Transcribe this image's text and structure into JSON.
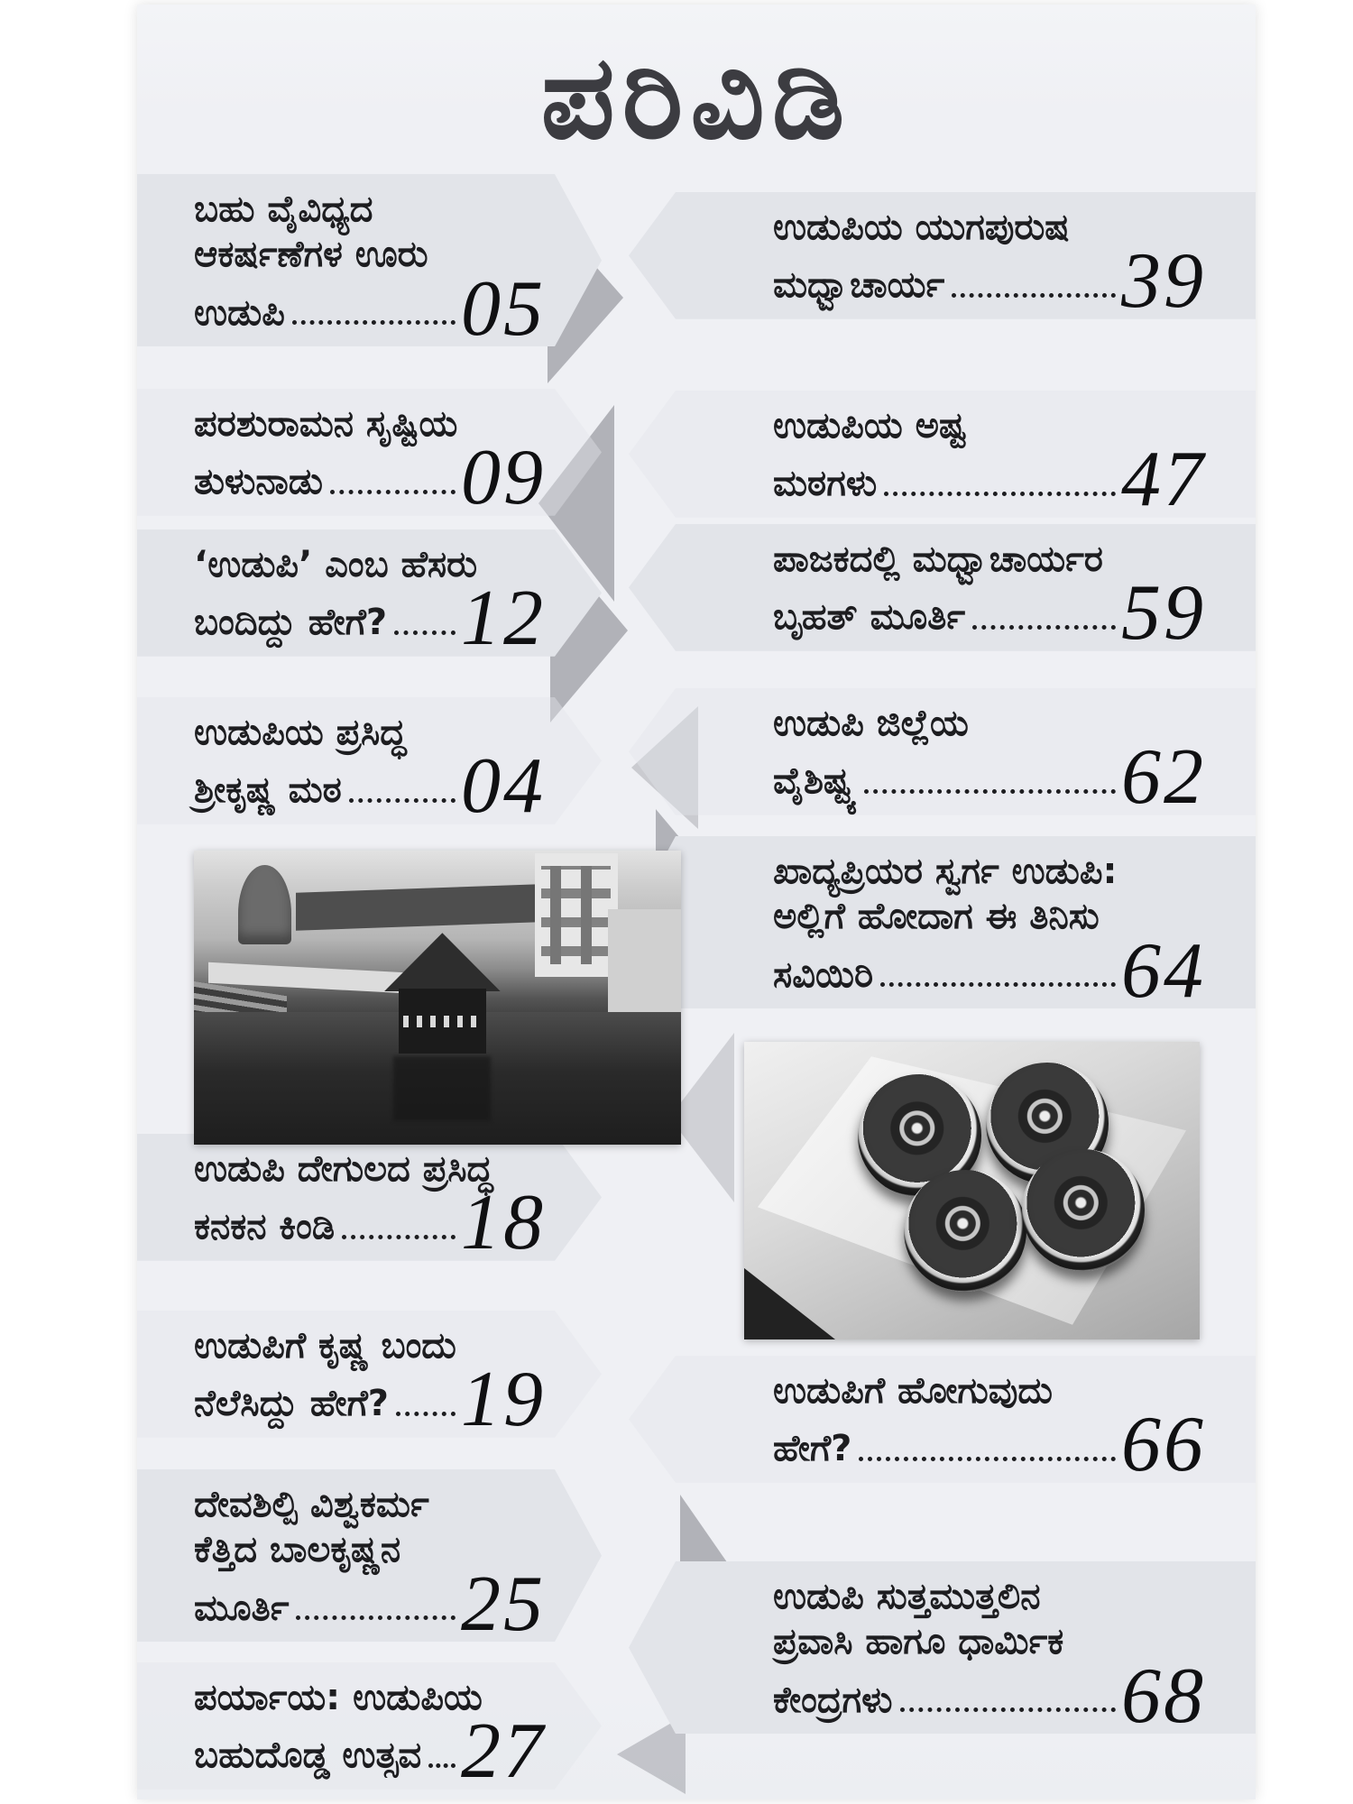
{
  "page": {
    "title": "ಪರಿವಿಡಿ",
    "colors": {
      "page_bg": "#eff0f4",
      "band": "#e2e4e9",
      "chevron": "#b1b2b8",
      "text": "#1d1d20",
      "number": "#101012",
      "title": "#3c3c41"
    }
  },
  "toc": {
    "left": [
      {
        "lines": [
          "ಬಹು ವೈವಿಧ್ಯದ",
          "ಆಕರ್ಷಣೆಗಳ ಊರು"
        ],
        "last": "ಉಡುಪಿ",
        "page": "05"
      },
      {
        "lines": [
          "ಪರಶುರಾಮನ ಸೃಷ್ಟಿಯ"
        ],
        "last": "ತುಳುನಾಡು",
        "page": "09"
      },
      {
        "lines": [
          "‘ಉಡುಪಿ’ ಎಂಬ ಹೆಸರು"
        ],
        "last": "ಬಂದಿದ್ದು ಹೇಗೆ?",
        "page": "12"
      },
      {
        "lines": [
          "ಉಡುಪಿಯ ಪ್ರಸಿದ್ಧ"
        ],
        "last": "ಶ್ರೀಕೃಷ್ಣ ಮಠ",
        "page": "04"
      },
      {
        "lines": [
          "ಉಡುಪಿ ದೇಗುಲದ ಪ್ರಸಿದ್ಧ"
        ],
        "last": "ಕನಕನ ಕಿಂಡಿ",
        "page": "18"
      },
      {
        "lines": [
          "ಉಡುಪಿಗೆ ಕೃಷ್ಣ ಬಂದು"
        ],
        "last": "ನೆಲೆಸಿದ್ದು ಹೇಗೆ?",
        "page": "19"
      },
      {
        "lines": [
          "ದೇವಶಿಲ್ಪಿ ವಿಶ್ವಕರ್ಮ",
          "ಕೆತ್ತಿದ ಬಾಲಕೃಷ್ಣನ"
        ],
        "last": "ಮೂರ್ತಿ",
        "page": "25"
      },
      {
        "lines": [
          "ಪರ್ಯಾಯ: ಉಡುಪಿಯ"
        ],
        "last": "ಬಹುದೊಡ್ಡ ಉತ್ಸವ",
        "page": "27"
      }
    ],
    "right": [
      {
        "lines": [
          "ಉಡುಪಿಯ ಯುಗಪುರುಷ"
        ],
        "last": "ಮಧ್ವಾಚಾರ್ಯ",
        "page": "39"
      },
      {
        "lines": [
          "ಉಡುಪಿಯ ಅಷ್ಟ"
        ],
        "last": "ಮಠಗಳು",
        "page": "47"
      },
      {
        "lines": [
          "ಪಾಜಕದಲ್ಲಿ ಮಧ್ವಾಚಾರ್ಯರ"
        ],
        "last": "ಬೃಹತ್ ಮೂರ್ತಿ",
        "page": "59"
      },
      {
        "lines": [
          "ಉಡುಪಿ ಜಿಲ್ಲೆಯ"
        ],
        "last": "ವೈಶಿಷ್ಟ್ಯ",
        "page": "62"
      },
      {
        "lines": [
          "ಖಾದ್ಯಪ್ರಿಯರ ಸ್ವರ್ಗ ಉಡುಪಿ:",
          "ಅಲ್ಲಿಗೆ ಹೋದಾಗ ಈ ತಿನಿಸು"
        ],
        "last": "ಸವಿಯಿರಿ",
        "page": "64"
      },
      {
        "lines": [
          "ಉಡುಪಿಗೆ ಹೋಗುವುದು"
        ],
        "last": "ಹೇಗೆ?",
        "page": "66"
      },
      {
        "lines": [
          "ಉಡುಪಿ ಸುತ್ತಮುತ್ತಲಿನ",
          "ಪ್ರವಾಸಿ ಹಾಗೂ ಧಾರ್ಮಿಕ"
        ],
        "last": "ಕೇಂದ್ರಗಳು",
        "page": "68"
      }
    ]
  },
  "photos": {
    "left": {
      "name": "udupi-krishna-matha-tank-photo",
      "description": "grayscale photo of temple tank with central pavilion surrounded by buildings"
    },
    "right": {
      "name": "spiral-snack-rolls-photo",
      "description": "grayscale photo of four spiral snack rolls on a plate"
    }
  }
}
